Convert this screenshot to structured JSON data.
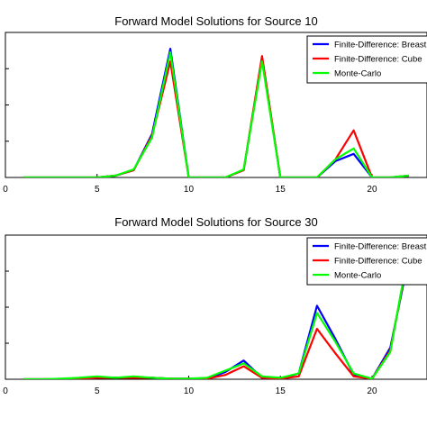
{
  "chart_data": [
    {
      "type": "line",
      "title": "Forward Model Solutions for Source 10",
      "xlabel": "",
      "ylabel": "",
      "xlim": [
        0,
        23
      ],
      "ylim": [
        0,
        4
      ],
      "xticks": [
        0,
        5,
        10,
        15,
        20
      ],
      "xtick_labels": [
        "0",
        "5",
        "10",
        "15",
        "20"
      ],
      "grid": false,
      "legend": "top-right",
      "x": [
        1,
        2,
        3,
        4,
        5,
        6,
        7,
        8,
        9,
        10,
        11,
        12,
        13,
        14,
        15,
        16,
        17,
        18,
        19,
        20,
        21,
        22
      ],
      "series": [
        {
          "name": "Finite-Difference: Breast",
          "color": "#0000ff",
          "values": [
            0,
            0,
            0,
            0,
            0,
            0.05,
            0.2,
            1.2,
            3.55,
            0,
            0,
            0,
            0.2,
            3.3,
            0,
            0,
            0,
            0.45,
            0.65,
            0,
            0,
            0.05
          ]
        },
        {
          "name": "Finite-Difference: Cube",
          "color": "#ff0000",
          "values": [
            0,
            0,
            0,
            0,
            0,
            0.05,
            0.2,
            1.15,
            3.2,
            0,
            0,
            0,
            0.2,
            3.35,
            0,
            0,
            0,
            0.5,
            1.3,
            0,
            0,
            0.05
          ]
        },
        {
          "name": "Monte-Carlo",
          "color": "#00ff00",
          "values": [
            0,
            0,
            0,
            0,
            0,
            0.05,
            0.22,
            1.1,
            3.45,
            0,
            0,
            0,
            0.22,
            3.2,
            0,
            0,
            0,
            0.5,
            0.8,
            0,
            0,
            0.05
          ]
        }
      ]
    },
    {
      "type": "line",
      "title": "Forward Model Solutions for Source 30",
      "xlabel": "",
      "ylabel": "",
      "xlim": [
        0,
        23
      ],
      "ylim": [
        0,
        5
      ],
      "xticks": [
        0,
        5,
        10,
        15,
        20
      ],
      "xtick_labels": [
        "0",
        "5",
        "10",
        "15",
        "20"
      ],
      "grid": false,
      "legend": "top-right",
      "x": [
        1,
        2,
        3,
        4,
        5,
        6,
        7,
        8,
        9,
        10,
        11,
        12,
        13,
        14,
        15,
        16,
        17,
        18,
        19,
        20,
        21,
        22
      ],
      "series": [
        {
          "name": "Finite-Difference: Breast",
          "color": "#0000ff",
          "values": [
            0,
            0,
            0,
            0.02,
            0.05,
            0.05,
            0.05,
            0.05,
            0.02,
            0.02,
            0.02,
            0.25,
            0.65,
            0.05,
            0.02,
            0.2,
            2.55,
            1.4,
            0.15,
            0.02,
            1.1,
            4.2
          ]
        },
        {
          "name": "Finite-Difference: Cube",
          "color": "#ff0000",
          "values": [
            0,
            0,
            0,
            0.02,
            0.05,
            0.05,
            0.05,
            0.05,
            0.02,
            0.02,
            0.02,
            0.15,
            0.45,
            0.05,
            0.02,
            0.1,
            1.75,
            0.9,
            0.1,
            0.02,
            1.0,
            4.4
          ]
        },
        {
          "name": "Monte-Carlo",
          "color": "#00ff00",
          "values": [
            0,
            0,
            0.02,
            0.05,
            0.1,
            0.05,
            0.1,
            0.05,
            0.02,
            0.02,
            0.05,
            0.3,
            0.55,
            0.1,
            0.05,
            0.2,
            2.3,
            1.3,
            0.2,
            0.02,
            0.95,
            4.5
          ]
        }
      ]
    }
  ]
}
